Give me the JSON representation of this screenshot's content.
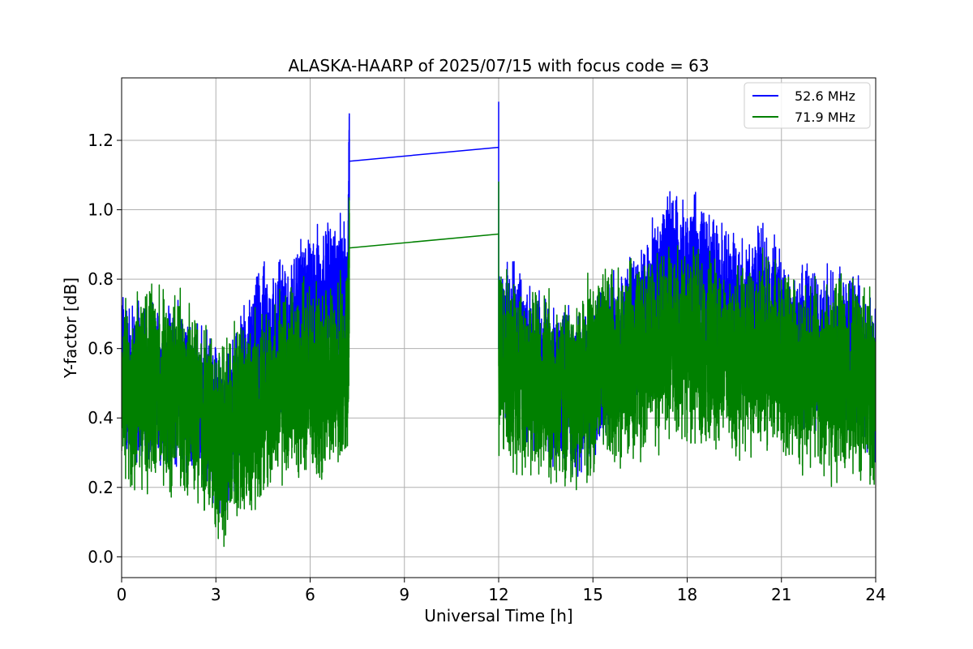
{
  "chart_data": {
    "type": "line",
    "title": "ALASKA-HAARP of 2025/07/15 with focus code = 63",
    "xlabel": "Universal Time [h]",
    "ylabel": "Y-factor [dB]",
    "xlim": [
      0,
      24
    ],
    "ylim": [
      -0.06,
      1.38
    ],
    "xticks": [
      0,
      3,
      6,
      9,
      12,
      15,
      18,
      21,
      24
    ],
    "xtick_labels": [
      "0",
      "3",
      "6",
      "9",
      "12",
      "15",
      "18",
      "21",
      "24"
    ],
    "yticks": [
      0.0,
      0.2,
      0.4,
      0.6,
      0.8,
      1.0,
      1.2
    ],
    "ytick_labels": [
      "0.0",
      "0.2",
      "0.4",
      "0.6",
      "0.8",
      "1.0",
      "1.2"
    ],
    "grid": true,
    "legend_position": "top-right",
    "series": [
      {
        "name": "52.6 MHz",
        "color": "#0000ff",
        "x": [
          0,
          0.3,
          0.6,
          0.9,
          1.2,
          1.5,
          1.8,
          2.1,
          2.4,
          2.7,
          3.0,
          3.3,
          3.6,
          3.9,
          4.2,
          4.5,
          4.8,
          5.1,
          5.4,
          5.7,
          6.0,
          6.3,
          6.6,
          6.9,
          7.2,
          7.25,
          12.0,
          12.0,
          12.0,
          12.3,
          12.6,
          12.9,
          13.2,
          13.5,
          13.8,
          14.1,
          14.4,
          14.7,
          15.0,
          15.3,
          15.6,
          15.9,
          16.2,
          16.5,
          16.8,
          17.1,
          17.4,
          17.7,
          18.0,
          18.3,
          18.6,
          18.9,
          19.2,
          19.5,
          19.8,
          20.1,
          20.4,
          20.7,
          21.0,
          21.3,
          21.6,
          21.9,
          22.2,
          22.5,
          22.8,
          23.1,
          23.4,
          23.7,
          24.0
        ],
        "y": [
          0.55,
          0.5,
          0.52,
          0.47,
          0.5,
          0.48,
          0.5,
          0.45,
          0.44,
          0.42,
          0.38,
          0.33,
          0.42,
          0.48,
          0.55,
          0.62,
          0.6,
          0.65,
          0.62,
          0.68,
          0.7,
          0.72,
          0.75,
          0.74,
          0.72,
          1.14,
          1.18,
          1.31,
          0.6,
          0.62,
          0.6,
          0.58,
          0.55,
          0.52,
          0.5,
          0.48,
          0.47,
          0.5,
          0.52,
          0.55,
          0.58,
          0.62,
          0.65,
          0.68,
          0.7,
          0.75,
          0.82,
          0.8,
          0.78,
          0.8,
          0.78,
          0.74,
          0.72,
          0.7,
          0.68,
          0.7,
          0.72,
          0.7,
          0.66,
          0.62,
          0.6,
          0.62,
          0.6,
          0.58,
          0.6,
          0.58,
          0.6,
          0.55,
          0.5
        ]
      },
      {
        "name": "71.9 MHz",
        "color": "#008000",
        "x": [
          0,
          0.3,
          0.6,
          0.9,
          1.2,
          1.5,
          1.8,
          2.1,
          2.4,
          2.7,
          3.0,
          3.3,
          3.6,
          3.9,
          4.2,
          4.5,
          4.8,
          5.1,
          5.4,
          5.7,
          6.0,
          6.3,
          6.6,
          6.9,
          7.2,
          7.25,
          12.0,
          12.0,
          12.0,
          12.3,
          12.6,
          12.9,
          13.2,
          13.5,
          13.8,
          14.1,
          14.4,
          14.7,
          15.0,
          15.3,
          15.6,
          15.9,
          16.2,
          16.5,
          16.8,
          17.1,
          17.4,
          17.7,
          18.0,
          18.3,
          18.6,
          18.9,
          19.2,
          19.5,
          19.8,
          20.1,
          20.4,
          20.7,
          21.0,
          21.3,
          21.6,
          21.9,
          22.2,
          22.5,
          22.8,
          23.1,
          23.4,
          23.7,
          24.0
        ],
        "y": [
          0.47,
          0.45,
          0.5,
          0.48,
          0.5,
          0.45,
          0.5,
          0.45,
          0.42,
          0.4,
          0.35,
          0.32,
          0.38,
          0.4,
          0.42,
          0.44,
          0.45,
          0.48,
          0.5,
          0.5,
          0.5,
          0.48,
          0.5,
          0.52,
          0.55,
          0.89,
          0.93,
          1.08,
          0.55,
          0.55,
          0.53,
          0.52,
          0.5,
          0.5,
          0.48,
          0.47,
          0.47,
          0.5,
          0.52,
          0.55,
          0.55,
          0.55,
          0.56,
          0.58,
          0.58,
          0.6,
          0.62,
          0.62,
          0.62,
          0.6,
          0.6,
          0.6,
          0.58,
          0.56,
          0.56,
          0.58,
          0.58,
          0.58,
          0.56,
          0.55,
          0.52,
          0.53,
          0.52,
          0.5,
          0.52,
          0.5,
          0.52,
          0.5,
          0.48
        ]
      }
    ]
  }
}
